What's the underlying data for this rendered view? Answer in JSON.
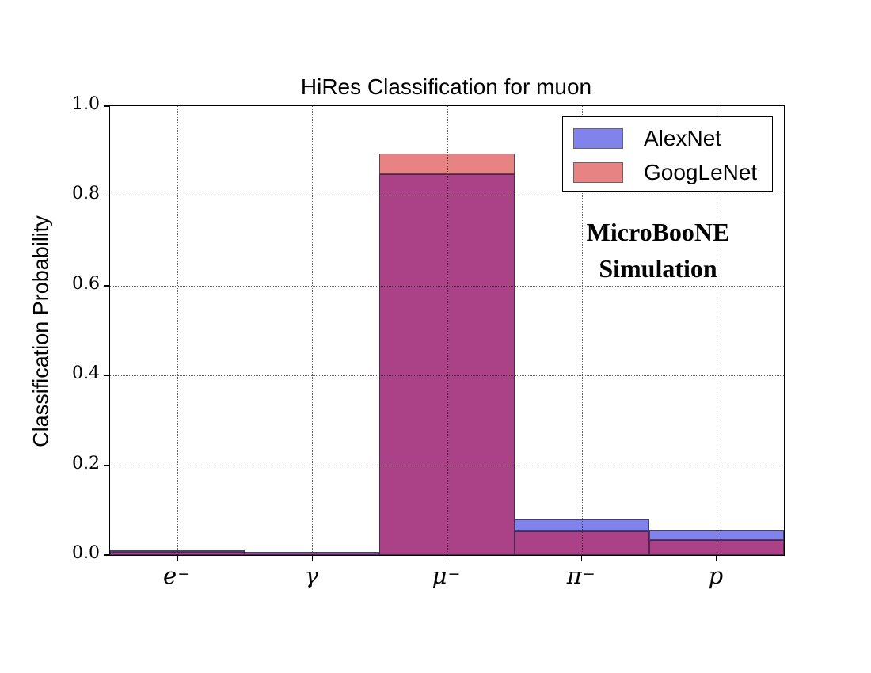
{
  "chart_data": {
    "type": "bar",
    "title": "HiRes Classification for muon",
    "ylabel": "Classification Probability",
    "xlabel": "",
    "categories": [
      "e⁻",
      "γ",
      "μ⁻",
      "π⁻",
      "p"
    ],
    "series": [
      {
        "name": "AlexNet",
        "color": "#8282ec",
        "values": [
          0.01,
          0.007,
          0.848,
          0.08,
          0.055
        ]
      },
      {
        "name": "GoogLeNet",
        "color": "#e88383",
        "values": [
          0.007,
          0.005,
          0.895,
          0.053,
          0.034
        ]
      }
    ],
    "overlap_color": "#ab4187",
    "ylim": [
      0.0,
      1.0
    ],
    "yticks": [
      0.0,
      0.2,
      0.4,
      0.6,
      0.8,
      1.0
    ],
    "grid": true,
    "legend_position": "upper right",
    "annotation_lines": [
      "MicroBooNE",
      "Simulation"
    ],
    "colors": {
      "axis": "#000000",
      "grid": "#444444",
      "background": "#ffffff"
    }
  }
}
